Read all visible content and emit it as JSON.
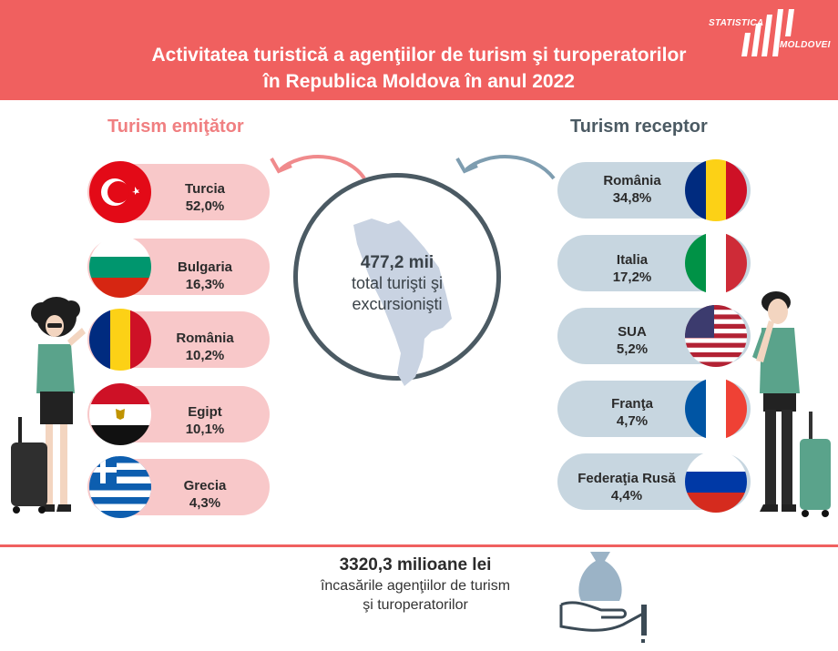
{
  "header": {
    "title_line1": "Activitatea turistică a agenţiilor de turism şi turoperatorilor",
    "title_line2": "în Republica Moldova în anul 2022",
    "logo_line1": "STATISTICA",
    "logo_line2": "MOLDOVEI"
  },
  "outbound": {
    "title": "Turism emiţător",
    "items": [
      {
        "country": "Turcia",
        "value": "52,0%"
      },
      {
        "country": "Bulgaria",
        "value": "16,3%"
      },
      {
        "country": "România",
        "value": "10,2%"
      },
      {
        "country": "Egipt",
        "value": "10,1%"
      },
      {
        "country": "Grecia",
        "value": "4,3%"
      }
    ]
  },
  "inbound": {
    "title": "Turism receptor",
    "items": [
      {
        "country": "România",
        "value": "34,8%"
      },
      {
        "country": "Italia",
        "value": "17,2%"
      },
      {
        "country": "SUA",
        "value": "5,2%"
      },
      {
        "country": "Franţa",
        "value": "4,7%"
      },
      {
        "country": "Federaţia Rusă",
        "value": "4,4%"
      }
    ]
  },
  "center": {
    "value": "477,2 mii",
    "label_line1": "total turişti şi",
    "label_line2": "excursionişti"
  },
  "bottom": {
    "value": "3320,3 milioane lei",
    "label_line1": "încasările agenţiilor de turism",
    "label_line2": "şi turoperatorilor"
  },
  "colors": {
    "accent": "#f0605f",
    "outbound_pill": "#f8c8c9",
    "inbound_pill": "#c7d6e0",
    "outbound_title": "#f07f81",
    "inbound_title": "#4b5a63"
  },
  "icons": [
    "turkey-flag-icon",
    "bulgaria-flag-icon",
    "romania-flag-icon",
    "egypt-flag-icon",
    "greece-flag-icon",
    "italy-flag-icon",
    "usa-flag-icon",
    "france-flag-icon",
    "russia-flag-icon",
    "moldova-map-icon",
    "money-bag-hand-icon",
    "woman-traveler-illustration",
    "man-traveler-illustration"
  ]
}
